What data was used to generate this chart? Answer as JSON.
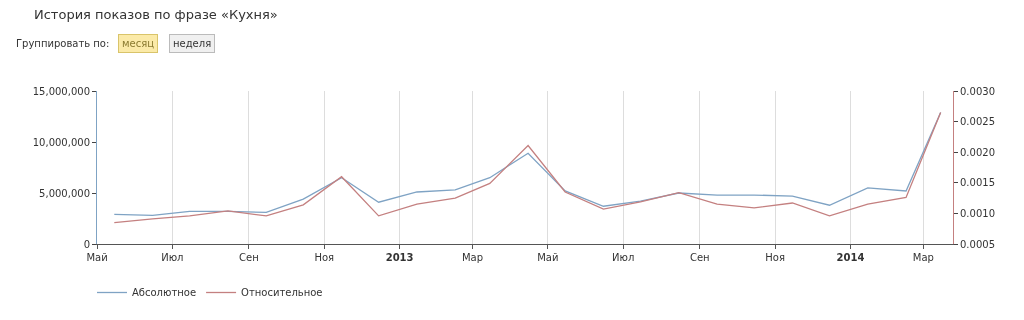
{
  "chart_data": {
    "type": "line",
    "title": "История показов по фразе «Кухня»",
    "annotations": [
      "Группировать по:",
      "месяц",
      "неделя"
    ],
    "x": [
      "2012-05-15",
      "2012-06-15",
      "2012-07-15",
      "2012-08-15",
      "2012-09-15",
      "2012-10-15",
      "2012-11-15",
      "2012-12-15",
      "2013-01-15",
      "2013-02-15",
      "2013-03-15",
      "2013-04-15",
      "2013-05-15",
      "2013-06-15",
      "2013-07-15",
      "2013-08-15",
      "2013-09-15",
      "2013-10-15",
      "2013-11-15",
      "2013-12-15",
      "2014-01-15",
      "2014-02-15",
      "2014-03-15"
    ],
    "series": [
      {
        "name": "Абсолютное",
        "color": "#7fa3c4",
        "values": [
          2900000,
          2800000,
          3200000,
          3200000,
          3100000,
          4400000,
          6500000,
          4100000,
          5100000,
          5300000,
          6500000,
          8900000,
          5200000,
          3700000,
          4200000,
          5000000,
          4800000,
          4800000,
          4700000,
          3800000,
          5500000,
          5200000,
          12900000
        ]
      },
      {
        "name": "Относительное",
        "color": "#c48080",
        "axis": "y2",
        "values": [
          0.00085,
          0.00091,
          0.00096,
          0.00104,
          0.00096,
          0.00114,
          0.0016,
          0.00096,
          0.00115,
          0.00125,
          0.00149,
          0.00211,
          0.00135,
          0.00107,
          0.00119,
          0.00134,
          0.00115,
          0.00109,
          0.00117,
          0.00096,
          0.00115,
          0.00126,
          0.00265
        ]
      }
    ],
    "xlim": [
      "2012-05-01",
      "2014-03-25"
    ],
    "xticks": [
      {
        "value": "2012-05-01",
        "label": "Май"
      },
      {
        "value": "2012-07-01",
        "label": "Июл"
      },
      {
        "value": "2012-09-01",
        "label": "Сен"
      },
      {
        "value": "2012-11-01",
        "label": "Ноя"
      },
      {
        "value": "2013-01-01",
        "label": "2013"
      },
      {
        "value": "2013-03-01",
        "label": "Мар"
      },
      {
        "value": "2013-05-01",
        "label": "Май"
      },
      {
        "value": "2013-07-01",
        "label": "Июл"
      },
      {
        "value": "2013-09-01",
        "label": "Сен"
      },
      {
        "value": "2013-11-01",
        "label": "Ноя"
      },
      {
        "value": "2014-01-01",
        "label": "2014"
      },
      {
        "value": "2014-03-01",
        "label": "Мар"
      }
    ],
    "ylim": [
      0,
      15000000
    ],
    "yticks": [
      {
        "value": 0,
        "label": "0"
      },
      {
        "value": 5000000,
        "label": "5,000,000"
      },
      {
        "value": 10000000,
        "label": "10,000,000"
      },
      {
        "value": 15000000,
        "label": "15,000,000"
      }
    ],
    "y2lim": [
      0.0005,
      0.003
    ],
    "y2ticks": [
      {
        "value": 0.0005,
        "label": "0.0005"
      },
      {
        "value": 0.001,
        "label": "0.0010"
      },
      {
        "value": 0.0015,
        "label": "0.0015"
      },
      {
        "value": 0.002,
        "label": "0.0020"
      },
      {
        "value": 0.0025,
        "label": "0.0025"
      },
      {
        "value": 0.003,
        "label": "0.0030"
      }
    ],
    "grid": "x",
    "legend": "bottom left",
    "marker": "none",
    "line_style": "solid"
  }
}
